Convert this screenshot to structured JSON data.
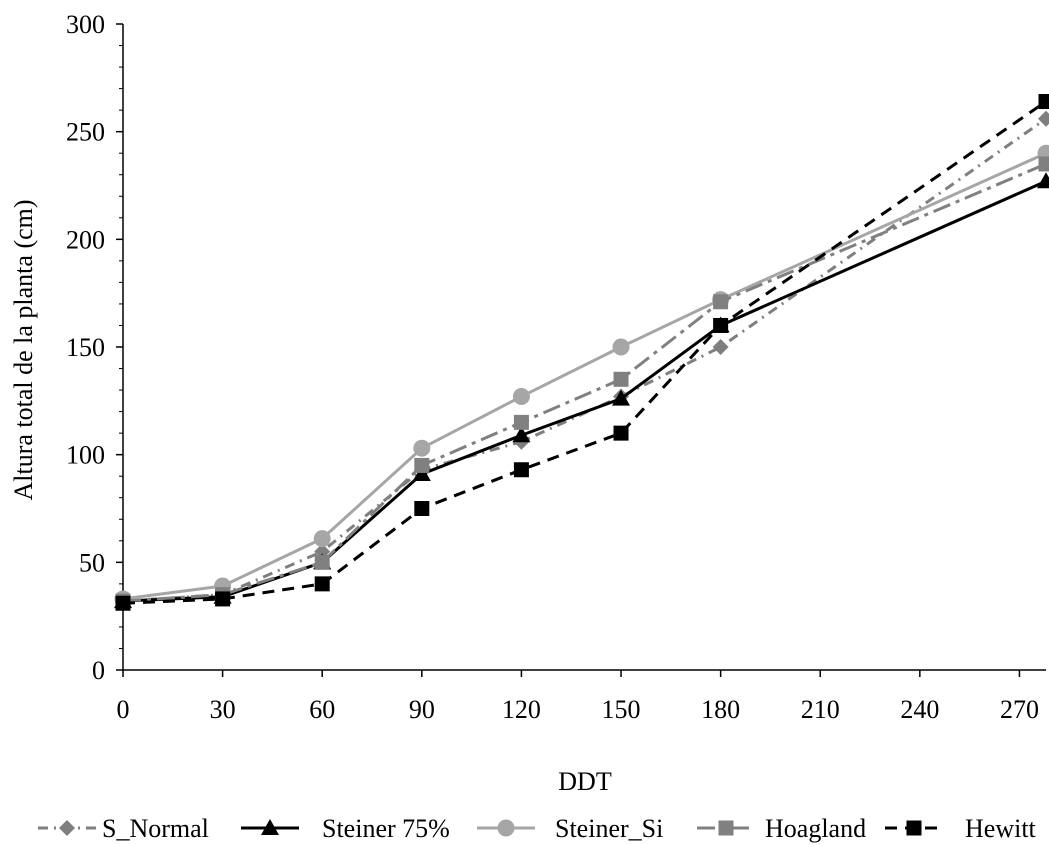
{
  "chart_data": {
    "type": "line",
    "title": "",
    "xlabel": "DDT",
    "ylabel": "Altura total de la planta (cm)",
    "xlim": [
      0,
      278
    ],
    "ylim": [
      0,
      300
    ],
    "xticks": [
      "0",
      "30",
      "60",
      "90",
      "120",
      "150",
      "180",
      "210",
      "240",
      "270"
    ],
    "yticks": [
      "0",
      "50",
      "100",
      "150",
      "200",
      "250",
      "300"
    ],
    "grid": false,
    "legend_position": "bottom",
    "x": [
      0,
      30,
      60,
      90,
      120,
      150,
      180,
      278
    ],
    "series": [
      {
        "name": "S_Normal",
        "color": "#7f7f7f",
        "dash": "dash-dot",
        "marker": "diamond",
        "values": [
          32,
          35,
          55,
          93,
          106,
          127,
          150,
          256
        ]
      },
      {
        "name": "Steiner 75%",
        "color": "#000000",
        "dash": "solid",
        "marker": "triangle",
        "values": [
          32,
          34,
          50,
          91,
          109,
          126,
          160,
          227
        ]
      },
      {
        "name": "Steiner_Si",
        "color": "#a6a6a6",
        "dash": "solid",
        "marker": "circle",
        "values": [
          33,
          39,
          61,
          103,
          127,
          150,
          172,
          240
        ]
      },
      {
        "name": "Hoagland",
        "color": "#808080",
        "dash": "long-dash-dot",
        "marker": "square",
        "values": [
          32,
          35,
          50,
          95,
          115,
          135,
          171,
          235
        ]
      },
      {
        "name": "Hewitt",
        "color": "#000000",
        "dash": "dash",
        "marker": "square",
        "values": [
          31,
          33,
          40,
          75,
          93,
          110,
          160,
          264
        ]
      }
    ]
  }
}
